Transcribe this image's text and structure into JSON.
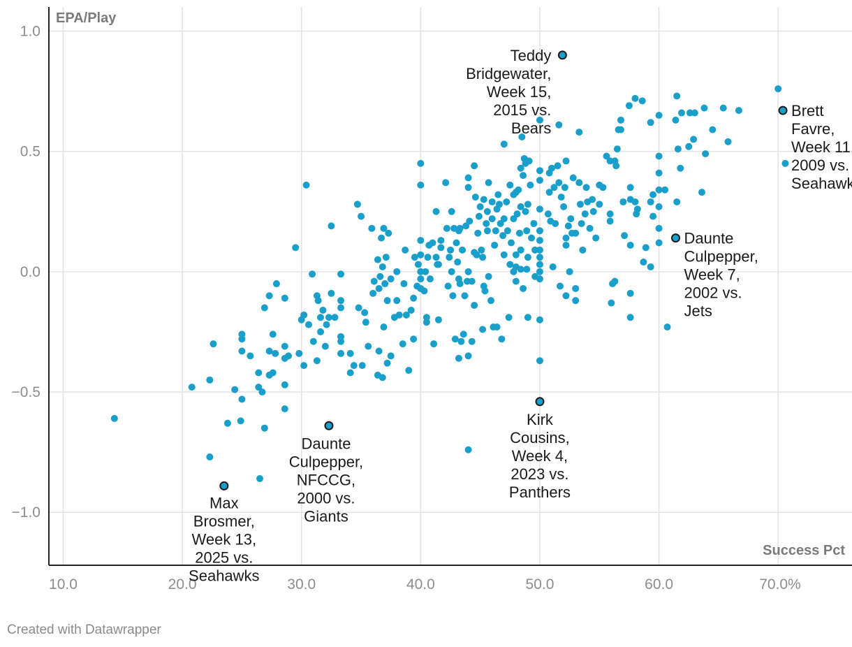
{
  "chart_data": {
    "type": "scatter",
    "ylabel": "EPA/Play",
    "xlabel": "Success Pct",
    "xlim": [
      8.8,
      76.2
    ],
    "ylim": [
      -1.22,
      1.1
    ],
    "xticks": [
      10,
      20,
      30,
      40,
      50,
      60,
      70
    ],
    "xtick_labels": [
      "10.0",
      "20.0",
      "30.0",
      "40.0",
      "50.0",
      "60.0",
      "70.0%"
    ],
    "yticks": [
      1.0,
      0.5,
      0.0,
      -0.5,
      -1.0
    ],
    "ytick_labels": [
      "1.0",
      "0.5",
      "0.0",
      "−0.5",
      "−1.0"
    ],
    "colors": {
      "point": "#1a9fcb",
      "highlight": "#1a9fcb",
      "highlight_stroke": "#1a1a1a",
      "grid": "#e2e2e2",
      "axis": "#222222"
    },
    "highlighted": [
      {
        "x": 51.9,
        "y": 0.9,
        "lines": [
          "Teddy",
          "Bridgewater,",
          "Week 15,",
          "2015 vs.",
          "Bears"
        ]
      },
      {
        "x": 70.4,
        "y": 0.67,
        "lines": [
          "Brett",
          "Favre,",
          "Week 11,",
          "2009 vs.",
          "Seahawks"
        ]
      },
      {
        "x": 61.4,
        "y": 0.14,
        "lines": [
          "Daunte",
          "Culpepper,",
          "Week 7,",
          "2002 vs.",
          "Jets"
        ]
      },
      {
        "x": 50.0,
        "y": -0.54,
        "lines": [
          "Kirk",
          "Cousins,",
          "Week 4,",
          "2023 vs.",
          "Panthers"
        ]
      },
      {
        "x": 32.3,
        "y": -0.64,
        "lines": [
          "Daunte",
          "Culpepper,",
          "NFCCG,",
          "2000 vs.",
          "Giants"
        ]
      },
      {
        "x": 23.5,
        "y": -0.89,
        "lines": [
          "Max",
          "Brosmer,",
          "Week 13,",
          "2025 vs.",
          "Seahawks"
        ]
      }
    ],
    "points": [
      [
        14.3,
        -0.61
      ],
      [
        20.8,
        -0.48
      ],
      [
        22.3,
        -0.77
      ],
      [
        22.3,
        -0.45
      ],
      [
        22.6,
        -0.3
      ],
      [
        23.8,
        -0.63
      ],
      [
        24.4,
        -0.49
      ],
      [
        24.9,
        -0.62
      ],
      [
        25.0,
        -0.53
      ],
      [
        25.0,
        -0.33
      ],
      [
        25.0,
        -0.28
      ],
      [
        25.0,
        -0.26
      ],
      [
        25.7,
        -0.35
      ],
      [
        26.4,
        -0.48
      ],
      [
        26.4,
        -0.42
      ],
      [
        26.5,
        -0.86
      ],
      [
        26.7,
        -0.5
      ],
      [
        26.9,
        -0.65
      ],
      [
        26.9,
        -0.15
      ],
      [
        27.3,
        -0.43
      ],
      [
        27.3,
        -0.33
      ],
      [
        27.3,
        -0.1
      ],
      [
        27.6,
        -0.42
      ],
      [
        27.6,
        -0.26
      ],
      [
        27.8,
        -0.34
      ],
      [
        27.9,
        -0.05
      ],
      [
        28.6,
        -0.57
      ],
      [
        28.6,
        -0.47
      ],
      [
        28.6,
        -0.36
      ],
      [
        28.6,
        -0.31
      ],
      [
        28.6,
        -0.11
      ],
      [
        28.9,
        -0.35
      ],
      [
        29.5,
        0.1
      ],
      [
        29.8,
        -0.34
      ],
      [
        30.0,
        -0.2
      ],
      [
        30.2,
        -0.39
      ],
      [
        30.2,
        -0.18
      ],
      [
        30.4,
        0.36
      ],
      [
        30.6,
        -0.22
      ],
      [
        30.9,
        -0.01
      ],
      [
        31.0,
        -0.29
      ],
      [
        31.3,
        -0.37
      ],
      [
        31.3,
        -0.1
      ],
      [
        31.4,
        -0.12
      ],
      [
        31.6,
        -0.25
      ],
      [
        31.6,
        -0.19
      ],
      [
        31.8,
        -0.16
      ],
      [
        32.0,
        -0.31
      ],
      [
        32.1,
        -0.22
      ],
      [
        32.3,
        -0.19
      ],
      [
        32.5,
        0.19
      ],
      [
        32.5,
        -0.09
      ],
      [
        32.8,
        -0.19
      ],
      [
        33.3,
        -0.34
      ],
      [
        33.3,
        -0.29
      ],
      [
        33.3,
        -0.27
      ],
      [
        33.3,
        -0.15
      ],
      [
        33.3,
        -0.12
      ],
      [
        33.3,
        -0.01
      ],
      [
        34.1,
        -0.42
      ],
      [
        34.1,
        -0.34
      ],
      [
        34.4,
        -0.39
      ],
      [
        34.7,
        0.28
      ],
      [
        34.8,
        -0.15
      ],
      [
        35.0,
        0.23
      ],
      [
        35.1,
        -0.39
      ],
      [
        35.3,
        -0.17
      ],
      [
        35.4,
        -0.21
      ],
      [
        35.6,
        -0.31
      ],
      [
        35.9,
        0.18
      ],
      [
        36.0,
        -0.09
      ],
      [
        36.1,
        -0.04
      ],
      [
        36.4,
        -0.43
      ],
      [
        36.4,
        0.05
      ],
      [
        36.5,
        -0.33
      ],
      [
        36.5,
        -0.07
      ],
      [
        36.6,
        -0.02
      ],
      [
        36.7,
        0.14
      ],
      [
        36.8,
        -0.44
      ],
      [
        36.8,
        0.02
      ],
      [
        36.9,
        -0.23
      ],
      [
        36.9,
        0.18
      ],
      [
        37.0,
        -0.05
      ],
      [
        37.1,
        0.06
      ],
      [
        37.2,
        -0.38
      ],
      [
        37.2,
        -0.12
      ],
      [
        37.3,
        0.16
      ],
      [
        37.5,
        -0.35
      ],
      [
        37.5,
        -0.03
      ],
      [
        37.8,
        -0.19
      ],
      [
        38.0,
        -0.12
      ],
      [
        38.0,
        0.0
      ],
      [
        38.2,
        -0.18
      ],
      [
        38.5,
        -0.3
      ],
      [
        38.6,
        -0.05
      ],
      [
        38.7,
        0.09
      ],
      [
        38.8,
        -0.18
      ],
      [
        39.0,
        -0.41
      ],
      [
        39.2,
        -0.16
      ],
      [
        39.4,
        -0.28
      ],
      [
        39.4,
        -0.11
      ],
      [
        39.5,
        0.06
      ],
      [
        39.7,
        -0.06
      ],
      [
        39.8,
        0.03
      ],
      [
        40.0,
        0.45
      ],
      [
        40.0,
        0.36
      ],
      [
        40.0,
        0.13
      ],
      [
        40.0,
        0.07
      ],
      [
        40.0,
        0.0
      ],
      [
        40.0,
        -0.03
      ],
      [
        40.0,
        -0.07
      ],
      [
        40.3,
        -0.08
      ],
      [
        40.4,
        0.0
      ],
      [
        40.5,
        -0.21
      ],
      [
        40.5,
        -0.19
      ],
      [
        40.6,
        0.06
      ],
      [
        40.7,
        0.11
      ],
      [
        40.8,
        -0.03
      ],
      [
        41.0,
        0.12
      ],
      [
        41.1,
        -0.3
      ],
      [
        41.3,
        0.25
      ],
      [
        41.3,
        0.06
      ],
      [
        41.4,
        0.03
      ],
      [
        41.5,
        0.03
      ],
      [
        41.5,
        -0.2
      ],
      [
        41.7,
        0.13
      ],
      [
        41.7,
        0.1
      ],
      [
        42.1,
        0.37
      ],
      [
        42.2,
        0.18
      ],
      [
        42.3,
        -0.06
      ],
      [
        42.4,
        0.06
      ],
      [
        42.5,
        0.09
      ],
      [
        42.6,
        0.25
      ],
      [
        42.6,
        0.0
      ],
      [
        42.7,
        -0.1
      ],
      [
        42.8,
        0.18
      ],
      [
        42.9,
        -0.28
      ],
      [
        43.0,
        0.12
      ],
      [
        43.1,
        0.04
      ],
      [
        43.2,
        -0.36
      ],
      [
        43.2,
        -0.03
      ],
      [
        43.2,
        0.17
      ],
      [
        43.3,
        -0.05
      ],
      [
        43.3,
        0.18
      ],
      [
        43.4,
        -0.29
      ],
      [
        43.5,
        0.09
      ],
      [
        43.6,
        -0.26
      ],
      [
        43.7,
        -0.1
      ],
      [
        43.8,
        0.19
      ],
      [
        43.9,
        -0.04
      ],
      [
        44.0,
        0.39
      ],
      [
        44.0,
        0.35
      ],
      [
        44.0,
        0.0
      ],
      [
        44.0,
        -0.35
      ],
      [
        44.0,
        -0.74
      ],
      [
        44.1,
        0.21
      ],
      [
        44.3,
        -0.04
      ],
      [
        44.3,
        -0.29
      ],
      [
        44.5,
        0.44
      ],
      [
        44.5,
        0.08
      ],
      [
        44.5,
        -0.14
      ],
      [
        44.6,
        0.31
      ],
      [
        44.7,
        0.07
      ],
      [
        44.8,
        0.16
      ],
      [
        44.9,
        0.23
      ],
      [
        45.0,
        0.27
      ],
      [
        45.1,
        0.09
      ],
      [
        45.2,
        0.06
      ],
      [
        45.2,
        -0.24
      ],
      [
        45.3,
        0.3
      ],
      [
        45.3,
        -0.06
      ],
      [
        45.4,
        -0.08
      ],
      [
        45.5,
        0.2
      ],
      [
        45.6,
        0.25
      ],
      [
        45.6,
        0.17
      ],
      [
        45.7,
        0.37
      ],
      [
        45.7,
        -0.02
      ],
      [
        45.9,
        -0.12
      ],
      [
        46.0,
        0.29
      ],
      [
        46.0,
        0.22
      ],
      [
        46.1,
        -0.23
      ],
      [
        46.2,
        0.11
      ],
      [
        46.3,
        0.17
      ],
      [
        46.4,
        0.26
      ],
      [
        46.4,
        -0.23
      ],
      [
        46.5,
        0.32
      ],
      [
        46.6,
        0.28
      ],
      [
        46.7,
        0.2
      ],
      [
        46.8,
        -0.28
      ],
      [
        46.9,
        0.15
      ],
      [
        47.0,
        0.53
      ],
      [
        47.0,
        0.22
      ],
      [
        47.0,
        0.07
      ],
      [
        47.2,
        0.29
      ],
      [
        47.3,
        0.17
      ],
      [
        47.4,
        -0.19
      ],
      [
        47.5,
        0.36
      ],
      [
        47.5,
        0.03
      ],
      [
        47.6,
        0.12
      ],
      [
        47.8,
        0.32
      ],
      [
        47.8,
        0.22
      ],
      [
        47.8,
        0.0
      ],
      [
        48.0,
        0.33
      ],
      [
        48.0,
        0.07
      ],
      [
        48.0,
        0.02
      ],
      [
        48.0,
        -0.04
      ],
      [
        48.1,
        0.24
      ],
      [
        48.2,
        0.34
      ],
      [
        48.3,
        0.16
      ],
      [
        48.4,
        0.43
      ],
      [
        48.4,
        0.27
      ],
      [
        48.4,
        0.09
      ],
      [
        48.4,
        0.01
      ],
      [
        48.5,
        0.56
      ],
      [
        48.6,
        0.4
      ],
      [
        48.6,
        -0.07
      ],
      [
        48.7,
        0.47
      ],
      [
        48.8,
        0.45
      ],
      [
        48.8,
        0.25
      ],
      [
        48.9,
        0.17
      ],
      [
        48.9,
        0.01
      ],
      [
        49.0,
        0.28
      ],
      [
        49.0,
        0.06
      ],
      [
        49.0,
        -0.19
      ],
      [
        49.1,
        0.46
      ],
      [
        49.2,
        0.36
      ],
      [
        49.3,
        0.14
      ],
      [
        49.5,
        0.2
      ],
      [
        49.6,
        0.09
      ],
      [
        49.6,
        -0.02
      ],
      [
        50.0,
        0.63
      ],
      [
        50.0,
        0.42
      ],
      [
        50.0,
        0.38
      ],
      [
        50.0,
        0.26
      ],
      [
        50.0,
        0.17
      ],
      [
        50.0,
        0.13
      ],
      [
        50.0,
        0.09
      ],
      [
        50.0,
        0.06
      ],
      [
        50.0,
        0.03
      ],
      [
        50.0,
        0.0
      ],
      [
        50.0,
        -0.03
      ],
      [
        50.0,
        -0.2
      ],
      [
        50.0,
        -0.37
      ],
      [
        50.7,
        0.24
      ],
      [
        50.8,
        0.41
      ],
      [
        50.8,
        0.33
      ],
      [
        50.9,
        0.21
      ],
      [
        51.0,
        0.43
      ],
      [
        51.1,
        0.02
      ],
      [
        51.2,
        0.35
      ],
      [
        51.3,
        0.2
      ],
      [
        51.5,
        0.44
      ],
      [
        51.6,
        0.61
      ],
      [
        51.6,
        0.37
      ],
      [
        51.7,
        -0.06
      ],
      [
        51.8,
        0.31
      ],
      [
        52.0,
        0.27
      ],
      [
        52.1,
        0.35
      ],
      [
        52.2,
        0.46
      ],
      [
        52.2,
        0.14
      ],
      [
        52.2,
        0.11
      ],
      [
        52.2,
        -0.1
      ],
      [
        52.4,
        0.19
      ],
      [
        52.5,
        0.0
      ],
      [
        52.6,
        0.22
      ],
      [
        52.7,
        0.16
      ],
      [
        52.8,
        0.39
      ],
      [
        53.0,
        0.16
      ],
      [
        53.0,
        -0.07
      ],
      [
        53.0,
        -0.12
      ],
      [
        53.3,
        0.58
      ],
      [
        53.3,
        0.37
      ],
      [
        53.4,
        0.28
      ],
      [
        53.5,
        0.2
      ],
      [
        53.6,
        0.09
      ],
      [
        53.8,
        0.24
      ],
      [
        53.9,
        0.35
      ],
      [
        54.0,
        0.29
      ],
      [
        54.2,
        0.18
      ],
      [
        54.4,
        0.3
      ],
      [
        54.5,
        0.25
      ],
      [
        54.7,
        0.14
      ],
      [
        55.0,
        0.36
      ],
      [
        55.0,
        0.28
      ],
      [
        55.3,
        0.35
      ],
      [
        55.6,
        0.48
      ],
      [
        55.9,
        0.46
      ],
      [
        55.9,
        0.24
      ],
      [
        55.9,
        0.21
      ],
      [
        56.0,
        -0.13
      ],
      [
        56.1,
        -0.05
      ],
      [
        56.3,
        0.46
      ],
      [
        56.3,
        -0.04
      ],
      [
        56.4,
        0.44
      ],
      [
        56.5,
        0.51
      ],
      [
        56.6,
        0.59
      ],
      [
        56.8,
        0.63
      ],
      [
        56.8,
        0.59
      ],
      [
        57.0,
        0.29
      ],
      [
        57.1,
        0.15
      ],
      [
        57.5,
        0.69
      ],
      [
        57.6,
        0.3
      ],
      [
        57.6,
        0.35
      ],
      [
        57.6,
        0.11
      ],
      [
        57.6,
        -0.09
      ],
      [
        57.6,
        -0.19
      ],
      [
        58.0,
        0.72
      ],
      [
        58.0,
        0.29
      ],
      [
        58.1,
        0.24
      ],
      [
        58.2,
        0.26
      ],
      [
        58.6,
        0.71
      ],
      [
        58.7,
        0.04
      ],
      [
        58.9,
        0.1
      ],
      [
        59.3,
        0.62
      ],
      [
        59.3,
        0.29
      ],
      [
        59.3,
        0.02
      ],
      [
        59.5,
        0.23
      ],
      [
        59.5,
        0.32
      ],
      [
        60.0,
        0.65
      ],
      [
        60.0,
        0.48
      ],
      [
        60.0,
        0.41
      ],
      [
        60.0,
        0.34
      ],
      [
        60.0,
        0.27
      ],
      [
        60.0,
        0.18
      ],
      [
        60.0,
        0.12
      ],
      [
        60.5,
        0.34
      ],
      [
        60.7,
        -0.23
      ],
      [
        61.4,
        0.63
      ],
      [
        61.5,
        0.29
      ],
      [
        61.5,
        0.73
      ],
      [
        61.6,
        0.51
      ],
      [
        61.8,
        0.43
      ],
      [
        61.9,
        0.66
      ],
      [
        62.5,
        0.52
      ],
      [
        62.6,
        0.66
      ],
      [
        62.9,
        0.55
      ],
      [
        63.0,
        0.66
      ],
      [
        63.6,
        0.33
      ],
      [
        63.8,
        0.68
      ],
      [
        63.9,
        0.49
      ],
      [
        64.5,
        0.59
      ],
      [
        65.4,
        0.68
      ],
      [
        65.8,
        0.54
      ],
      [
        66.7,
        0.67
      ],
      [
        70.0,
        0.76
      ],
      [
        70.6,
        0.45
      ]
    ]
  },
  "footer": {
    "credit": "Created with Datawrapper"
  }
}
